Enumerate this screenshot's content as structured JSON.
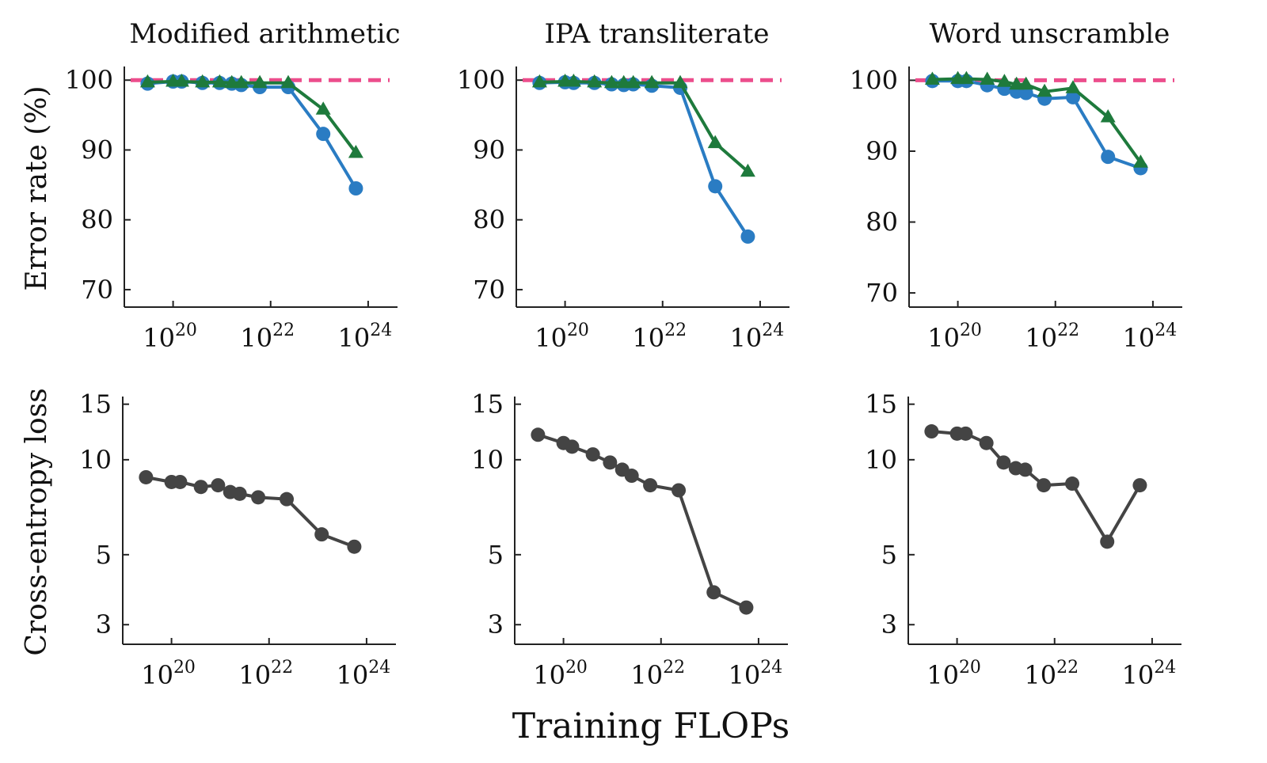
{
  "figure": {
    "shared_xlabel": "Training FLOPs"
  },
  "chart_data": [
    {
      "type": "line",
      "title": "Modified arithmetic",
      "ylabel": "Error rate (%)",
      "xlabel": "",
      "xscale": "log10",
      "xlim": [
        1e+19,
        4e+24
      ],
      "ylim": [
        67.5,
        101.5
      ],
      "ytick_labels": [
        "70",
        "80",
        "90",
        "100"
      ],
      "xtick_labels": [
        "10^20",
        "10^22",
        "10^24"
      ],
      "baseline": {
        "name": "random",
        "value": 100,
        "style": "dashed",
        "color": "#ec4d8c"
      },
      "series": [
        {
          "name": "series-circle",
          "marker": "circle",
          "color": "#2a7cc3",
          "x": [
            3e+19,
            1e+20,
            1.5e+20,
            4e+20,
            9e+20,
            1.6e+21,
            2.5e+21,
            6e+21,
            2.3e+22,
            1.2e+23,
            5.6e+23
          ],
          "y": [
            99.5,
            99.8,
            99.8,
            99.6,
            99.6,
            99.5,
            99.3,
            99.0,
            99.0,
            92.3,
            84.5
          ]
        },
        {
          "name": "series-triangle",
          "marker": "triangle",
          "color": "#1e7a3c",
          "x": [
            3e+19,
            1e+20,
            1.5e+20,
            4e+20,
            9e+20,
            1.6e+21,
            2.5e+21,
            6e+21,
            2.3e+22,
            1.2e+23,
            5.6e+23
          ],
          "y": [
            99.7,
            99.8,
            99.8,
            99.7,
            99.7,
            99.6,
            99.6,
            99.6,
            99.6,
            95.8,
            89.6
          ]
        }
      ]
    },
    {
      "type": "line",
      "title": "IPA transliterate",
      "ylabel": "",
      "xlabel": "",
      "xscale": "log10",
      "xlim": [
        1e+19,
        4e+24
      ],
      "ylim": [
        67.5,
        101.5
      ],
      "ytick_labels": [
        "70",
        "80",
        "90",
        "100"
      ],
      "xtick_labels": [
        "10^20",
        "10^22",
        "10^24"
      ],
      "baseline": {
        "name": "random",
        "value": 100,
        "style": "dashed",
        "color": "#ec4d8c"
      },
      "series": [
        {
          "name": "series-circle",
          "marker": "circle",
          "color": "#2a7cc3",
          "x": [
            3e+19,
            1e+20,
            1.5e+20,
            4e+20,
            9e+20,
            1.6e+21,
            2.5e+21,
            6e+21,
            2.3e+22,
            1.2e+23,
            5.6e+23
          ],
          "y": [
            99.6,
            99.7,
            99.6,
            99.6,
            99.4,
            99.3,
            99.4,
            99.2,
            98.9,
            84.8,
            77.6
          ]
        },
        {
          "name": "series-triangle",
          "marker": "triangle",
          "color": "#1e7a3c",
          "x": [
            3e+19,
            1e+20,
            1.5e+20,
            4e+20,
            9e+20,
            1.6e+21,
            2.5e+21,
            6e+21,
            2.3e+22,
            1.2e+23,
            5.6e+23
          ],
          "y": [
            99.7,
            99.8,
            99.8,
            99.7,
            99.6,
            99.6,
            99.6,
            99.6,
            99.6,
            91.0,
            86.9
          ]
        }
      ]
    },
    {
      "type": "line",
      "title": "Word unscramble",
      "ylabel": "",
      "xlabel": "",
      "xscale": "log10",
      "xlim": [
        1e+19,
        4e+24
      ],
      "ylim": [
        68,
        101.5
      ],
      "ytick_labels": [
        "70",
        "80",
        "90",
        "100"
      ],
      "xtick_labels": [
        "10^20",
        "10^22",
        "10^24"
      ],
      "baseline": {
        "name": "random",
        "value": 100,
        "style": "dashed",
        "color": "#ec4d8c"
      },
      "series": [
        {
          "name": "series-circle",
          "marker": "circle",
          "color": "#2a7cc3",
          "x": [
            3e+19,
            1e+20,
            1.5e+20,
            4e+20,
            9e+20,
            1.6e+21,
            2.5e+21,
            6e+21,
            2.3e+22,
            1.2e+23,
            5.6e+23
          ],
          "y": [
            99.9,
            99.9,
            99.9,
            99.3,
            98.8,
            98.4,
            98.2,
            97.4,
            97.6,
            89.2,
            87.6
          ]
        },
        {
          "name": "series-triangle",
          "marker": "triangle",
          "color": "#1e7a3c",
          "x": [
            3e+19,
            1e+20,
            1.5e+20,
            4e+20,
            9e+20,
            1.6e+21,
            2.5e+21,
            6e+21,
            2.3e+22,
            1.2e+23,
            5.6e+23
          ],
          "y": [
            100.1,
            100.2,
            100.2,
            100.1,
            99.8,
            99.4,
            99.4,
            98.4,
            98.9,
            94.8,
            88.4
          ]
        }
      ]
    },
    {
      "type": "line",
      "title": "",
      "ylabel": "Cross-entropy loss",
      "xlabel": "",
      "xscale": "log10",
      "yscale": "log",
      "xlim": [
        1e+19,
        4e+24
      ],
      "ylim": [
        2.6,
        15.5
      ],
      "ytick_labels": [
        "3",
        "5",
        "10",
        "15"
      ],
      "xtick_labels": [
        "10^20",
        "10^22",
        "10^24"
      ],
      "series": [
        {
          "name": "cross-entropy",
          "marker": "circle",
          "color": "#444444",
          "x": [
            3e+19,
            1e+20,
            1.5e+20,
            4e+20,
            9e+20,
            1.6e+21,
            2.5e+21,
            6e+21,
            2.3e+22,
            1.2e+23,
            5.6e+23
          ],
          "y": [
            8.8,
            8.5,
            8.5,
            8.2,
            8.3,
            7.9,
            7.8,
            7.6,
            7.5,
            5.8,
            5.3
          ]
        }
      ]
    },
    {
      "type": "line",
      "title": "",
      "ylabel": "",
      "xlabel": "",
      "xscale": "log10",
      "yscale": "log",
      "xlim": [
        1e+19,
        4e+24
      ],
      "ylim": [
        2.6,
        15.5
      ],
      "ytick_labels": [
        "3",
        "5",
        "10",
        "15"
      ],
      "xtick_labels": [
        "10^20",
        "10^22",
        "10^24"
      ],
      "series": [
        {
          "name": "cross-entropy",
          "marker": "circle",
          "color": "#444444",
          "x": [
            3e+19,
            1e+20,
            1.5e+20,
            4e+20,
            9e+20,
            1.6e+21,
            2.5e+21,
            6e+21,
            2.3e+22,
            1.2e+23,
            5.6e+23
          ],
          "y": [
            12.0,
            11.3,
            11.0,
            10.4,
            9.8,
            9.3,
            8.9,
            8.3,
            8.0,
            3.8,
            3.4
          ]
        }
      ]
    },
    {
      "type": "line",
      "title": "",
      "ylabel": "",
      "xlabel": "",
      "xscale": "log10",
      "yscale": "log",
      "xlim": [
        1e+19,
        4e+24
      ],
      "ylim": [
        2.6,
        15.5
      ],
      "ytick_labels": [
        "3",
        "5",
        "10",
        "15"
      ],
      "xtick_labels": [
        "10^20",
        "10^22",
        "10^24"
      ],
      "series": [
        {
          "name": "cross-entropy",
          "marker": "circle",
          "color": "#444444",
          "x": [
            3e+19,
            1e+20,
            1.5e+20,
            4e+20,
            9e+20,
            1.6e+21,
            2.5e+21,
            6e+21,
            2.3e+22,
            1.2e+23,
            5.6e+23
          ],
          "y": [
            12.3,
            12.1,
            12.1,
            11.3,
            9.8,
            9.4,
            9.3,
            8.3,
            8.4,
            5.5,
            8.3
          ]
        }
      ]
    }
  ]
}
